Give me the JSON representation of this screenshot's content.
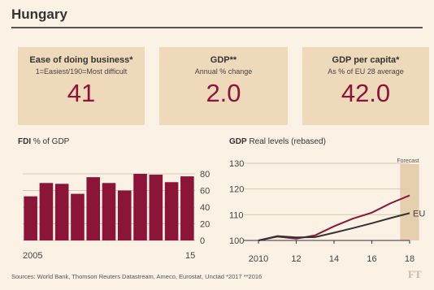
{
  "title": "Hungary",
  "stats": [
    {
      "label": "Ease of doing business*",
      "sub": "1=Easiest/190=Most difficult",
      "value": "41"
    },
    {
      "label": "GDP**",
      "sub": "Annual % change",
      "value": "2.0"
    },
    {
      "label": "GDP per capita*",
      "sub": "As % of EU 28 average",
      "value": "42.0"
    }
  ],
  "fdi": {
    "title_bold": "FDI",
    "title_rest": "% of GDP"
  },
  "gdp": {
    "title_bold": "GDP",
    "title_rest": "Real levels (rebased)",
    "forecast_label": "Forecast",
    "eu_label": "EU"
  },
  "colors": {
    "bar": "#8a1538",
    "hungary_line": "#8a1538",
    "eu_line": "#333333",
    "forecast_band": "#e6cfae",
    "stat_box": "#efd9bb",
    "background": "#fbf1e5"
  },
  "footer": "Sources: World Bank, Thomson Reuters Datastream, Ameco, Eurostat, Unctad   *2017  **2016",
  "logo": "FT",
  "chart_data": [
    {
      "type": "bar",
      "title": "FDI % of GDP",
      "categories": [
        "2005",
        "2006",
        "2007",
        "2008",
        "2009",
        "2010",
        "2011",
        "2012",
        "2013",
        "2014",
        "2015"
      ],
      "x_tick_labels": [
        "2005",
        "15"
      ],
      "values": [
        53,
        69,
        68,
        56,
        76,
        69,
        60,
        80,
        79,
        70,
        77
      ],
      "ylim": [
        0,
        80
      ],
      "y_ticks": [
        "0",
        "20",
        "40",
        "60",
        "80"
      ],
      "grid": true,
      "y_axis_side": "right"
    },
    {
      "type": "line",
      "title": "GDP Real levels (rebased)",
      "x_ticks": [
        "2010",
        "12",
        "14",
        "16",
        "18"
      ],
      "ylim": [
        100,
        130
      ],
      "y_ticks": [
        "100",
        "110",
        "120",
        "130"
      ],
      "forecast_range": [
        2017.5,
        2018.5
      ],
      "series": [
        {
          "name": "",
          "x": [
            2010,
            2011,
            2012,
            2013,
            2014,
            2015,
            2016,
            2017,
            2018
          ],
          "y": [
            100,
            101.5,
            100.7,
            102,
            105.5,
            108.5,
            110.8,
            114.5,
            117.5
          ]
        },
        {
          "name": "EU",
          "x": [
            2010,
            2011,
            2012,
            2013,
            2014,
            2015,
            2016,
            2017,
            2018
          ],
          "y": [
            100,
            101.7,
            101.2,
            101.3,
            103,
            104.8,
            106.7,
            108.7,
            110.6
          ]
        }
      ],
      "grid": true,
      "y_axis_side": "left"
    }
  ]
}
